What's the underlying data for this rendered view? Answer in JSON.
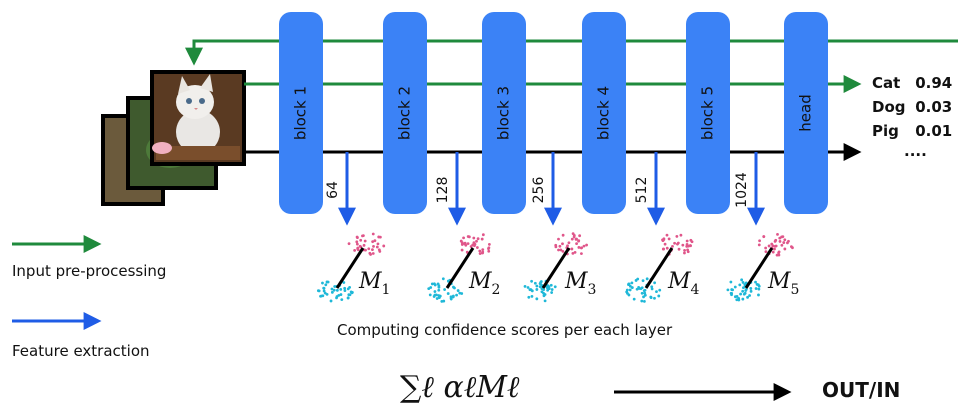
{
  "blocks": [
    "block 1",
    "block 2",
    "block 3",
    "block 4",
    "block 5",
    "head"
  ],
  "feature_dims": [
    "64",
    "128",
    "256",
    "512",
    "1024"
  ],
  "metrics": [
    {
      "base": "M",
      "sub": "1"
    },
    {
      "base": "M",
      "sub": "2"
    },
    {
      "base": "M",
      "sub": "3"
    },
    {
      "base": "M",
      "sub": "4"
    },
    {
      "base": "M",
      "sub": "5"
    }
  ],
  "predictions": [
    {
      "label": "Cat",
      "score": "0.94"
    },
    {
      "label": "Dog",
      "score": "0.03"
    },
    {
      "label": "Pig",
      "score": "0.01"
    }
  ],
  "predictions_more": "....",
  "legend": {
    "preprocessing": "Input pre-processing",
    "extraction": "Feature extraction"
  },
  "caption": "Computing confidence scores per each layer",
  "formula": "∑ℓ αℓMℓ",
  "output_label": "OUT/IN",
  "colors": {
    "block": "#3b82f6",
    "green": "#1f8a3c",
    "blue": "#1f5ce6",
    "pink": "#e0568a",
    "cyan": "#1fb8d8",
    "black": "#000000"
  },
  "icons": [
    "input-image-stack-icon",
    "kitten-image-icon",
    "arrowhead-icon",
    "point-cloud-icon"
  ]
}
